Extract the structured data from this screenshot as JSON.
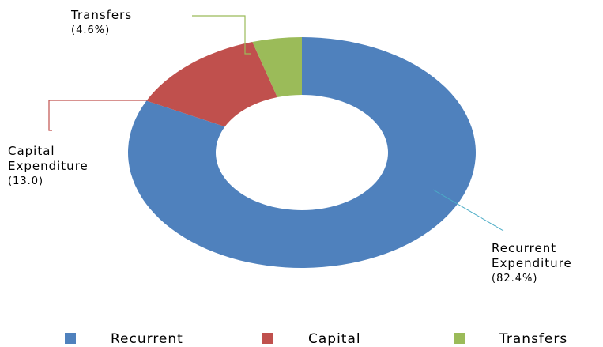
{
  "chart_data": {
    "type": "donut",
    "categories": [
      "Recurrent Expenditure",
      "Capital Expenditure",
      "Transfers"
    ],
    "values": [
      82.4,
      13.0,
      4.6
    ],
    "value_labels": [
      "(82.4%)",
      "(13.0)",
      "(4.6%)"
    ],
    "legend": [
      "Recurrent",
      "Capital",
      "Transfers"
    ],
    "colors": [
      "#4f81bd",
      "#c0504d",
      "#9bbb59"
    ]
  }
}
